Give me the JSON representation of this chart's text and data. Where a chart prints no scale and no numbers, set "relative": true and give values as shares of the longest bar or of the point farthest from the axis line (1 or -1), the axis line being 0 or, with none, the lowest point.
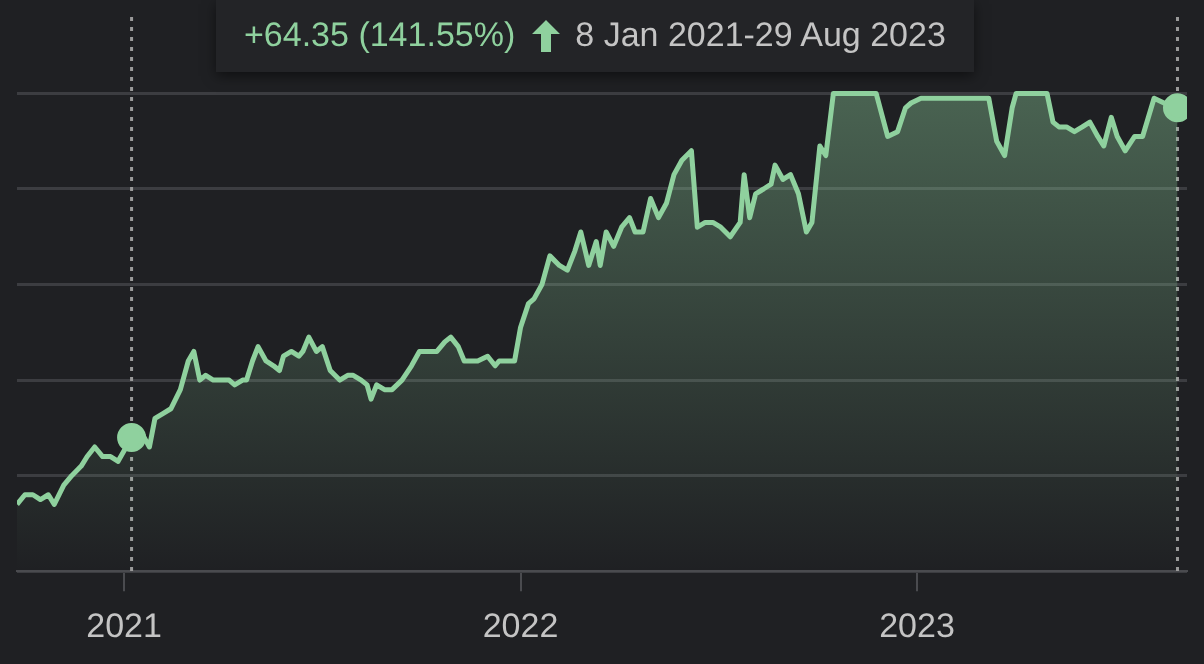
{
  "chart_data": {
    "type": "area",
    "relative": true,
    "xlim": [
      2020.73,
      2023.681
    ],
    "xticks": [
      2021,
      2022,
      2023
    ],
    "grid": "y",
    "legend": false,
    "annotations": [
      "+64.35 (141.55%)",
      "8 Jan 2021-29 Aug 2023"
    ],
    "ref_lines": [
      {
        "axis": "x",
        "value": 2021.019,
        "color": "#9a9a9a",
        "line_style": "dotted"
      },
      {
        "axis": "x",
        "value": 2023.657,
        "color": "#9a9a9a",
        "line_style": "dotted"
      }
    ],
    "series": [
      {
        "type": "area",
        "color": "#8fd19e",
        "marker": "none",
        "line_style": "solid",
        "x": [
          2020.73,
          2020.75,
          2020.77,
          2020.789,
          2020.809,
          2020.824,
          2020.848,
          2020.868,
          2020.892,
          2020.907,
          2020.926,
          2020.946,
          2020.966,
          2020.985,
          2021.019,
          2021.03,
          2021.044,
          2021.064,
          2021.078,
          2021.098,
          2021.118,
          2021.142,
          2021.162,
          2021.176,
          2021.191,
          2021.206,
          2021.225,
          2021.245,
          2021.265,
          2021.279,
          2021.299,
          2021.309,
          2021.324,
          2021.338,
          2021.358,
          2021.377,
          2021.392,
          2021.402,
          2021.422,
          2021.441,
          2021.451,
          2021.466,
          2021.485,
          2021.5,
          2021.52,
          2021.544,
          2021.564,
          2021.578,
          2021.598,
          2021.613,
          2021.623,
          2021.637,
          2021.657,
          2021.676,
          2021.701,
          2021.725,
          2021.745,
          2021.77,
          2021.789,
          2021.809,
          2021.824,
          2021.843,
          2021.858,
          2021.873,
          2021.892,
          2021.917,
          2021.936,
          2021.946,
          2021.966,
          2021.985,
          2022.0,
          2022.02,
          2022.034,
          2022.054,
          2022.074,
          2022.098,
          2022.118,
          2022.137,
          2022.152,
          2022.172,
          2022.191,
          2022.201,
          2022.216,
          2022.235,
          2022.255,
          2022.275,
          2022.289,
          2022.309,
          2022.328,
          2022.348,
          2022.368,
          2022.387,
          2022.407,
          2022.431,
          2022.446,
          2022.466,
          2022.485,
          2022.505,
          2022.529,
          2022.554,
          2022.564,
          2022.578,
          2022.593,
          2022.613,
          2022.632,
          2022.642,
          2022.662,
          2022.681,
          2022.701,
          2022.721,
          2022.735,
          2022.755,
          2022.77,
          2022.789,
          2022.897,
          2022.926,
          2022.951,
          2022.971,
          2022.985,
          2023.01,
          2023.083,
          2023.181,
          2023.201,
          2023.221,
          2023.24,
          2023.25,
          2023.328,
          2023.343,
          2023.358,
          2023.377,
          2023.397,
          2023.417,
          2023.436,
          2023.456,
          2023.471,
          2023.49,
          2023.505,
          2023.525,
          2023.549,
          2023.569,
          2023.598,
          2023.623,
          2023.657
        ],
        "values": [
          0.14,
          0.16,
          0.16,
          0.15,
          0.16,
          0.14,
          0.18,
          0.2,
          0.22,
          0.24,
          0.26,
          0.24,
          0.24,
          0.23,
          0.28,
          0.28,
          0.29,
          0.26,
          0.32,
          0.33,
          0.34,
          0.38,
          0.44,
          0.46,
          0.4,
          0.41,
          0.4,
          0.4,
          0.4,
          0.39,
          0.4,
          0.4,
          0.44,
          0.47,
          0.44,
          0.43,
          0.42,
          0.45,
          0.46,
          0.45,
          0.46,
          0.49,
          0.46,
          0.47,
          0.42,
          0.4,
          0.41,
          0.41,
          0.4,
          0.39,
          0.36,
          0.39,
          0.38,
          0.38,
          0.4,
          0.43,
          0.46,
          0.46,
          0.46,
          0.48,
          0.49,
          0.47,
          0.44,
          0.44,
          0.44,
          0.45,
          0.43,
          0.44,
          0.44,
          0.44,
          0.51,
          0.56,
          0.57,
          0.6,
          0.66,
          0.64,
          0.63,
          0.67,
          0.71,
          0.64,
          0.69,
          0.64,
          0.71,
          0.68,
          0.72,
          0.74,
          0.71,
          0.71,
          0.78,
          0.74,
          0.77,
          0.83,
          0.86,
          0.88,
          0.72,
          0.73,
          0.73,
          0.72,
          0.7,
          0.73,
          0.83,
          0.74,
          0.79,
          0.8,
          0.81,
          0.85,
          0.82,
          0.83,
          0.79,
          0.71,
          0.73,
          0.89,
          0.87,
          1.0,
          1.0,
          0.91,
          0.92,
          0.97,
          0.98,
          0.99,
          0.99,
          0.99,
          0.9,
          0.87,
          0.97,
          1.0,
          1.0,
          0.94,
          0.93,
          0.93,
          0.92,
          0.93,
          0.94,
          0.91,
          0.89,
          0.95,
          0.91,
          0.88,
          0.91,
          0.91,
          0.99,
          0.98,
          0.97
        ]
      },
      {
        "type": "scatter",
        "color": "#8fd19e",
        "marker": "circle",
        "x": [
          2021.019,
          2023.657
        ],
        "values": [
          0.28,
          0.97
        ]
      }
    ]
  }
}
